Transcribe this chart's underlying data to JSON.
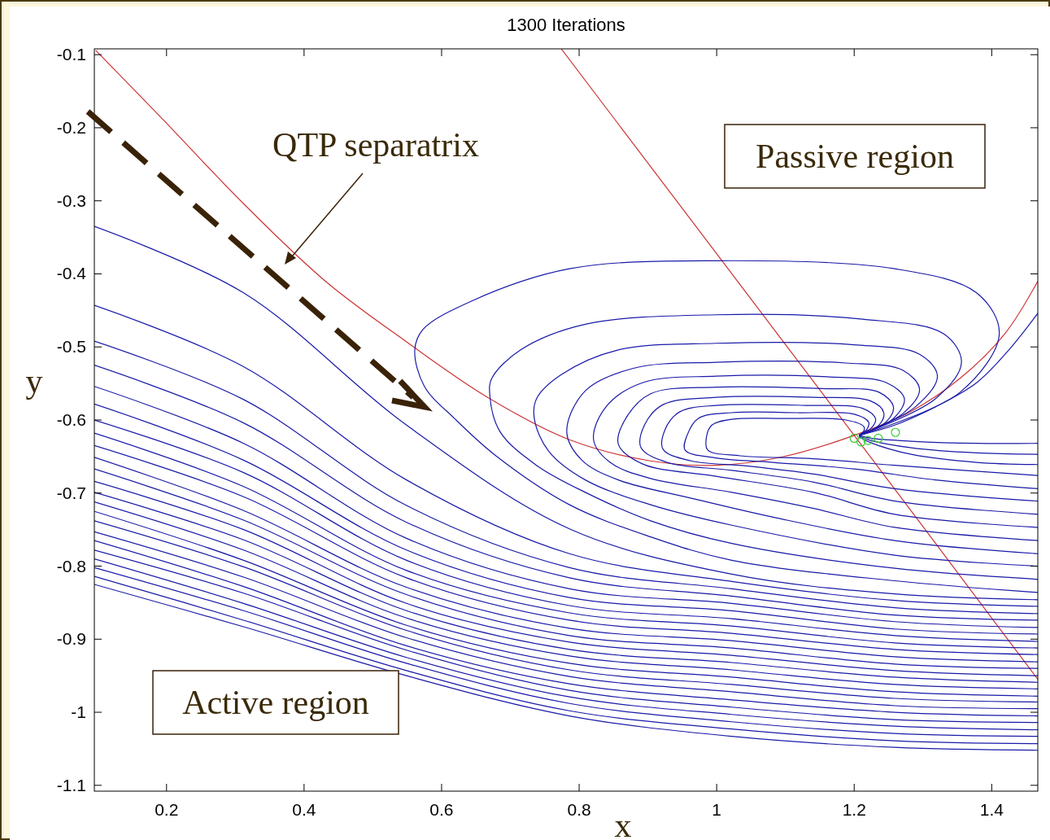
{
  "chart_data": {
    "type": "line",
    "title": "1300 Iterations",
    "xlabel": "x",
    "ylabel": "y",
    "xlim": [
      0.095,
      1.467
    ],
    "ylim": [
      -1.108,
      -0.092
    ],
    "xticks": [
      0.2,
      0.4,
      0.6,
      0.8,
      1,
      1.2,
      1.4
    ],
    "yticks": [
      -0.1,
      -0.2,
      -0.3,
      -0.4,
      -0.5,
      -0.6,
      -0.7,
      -0.8,
      -0.9,
      -1,
      -1.1
    ],
    "grid": false,
    "annotations": [
      "QTP separatrix",
      "Passive region",
      "Active region"
    ],
    "series": [
      {
        "color": "#cc3333",
        "x": [
          0.097,
          0.194,
          0.312,
          0.431,
          0.549,
          0.667,
          0.786,
          0.904,
          0.999,
          1.093,
          1.2,
          1.283,
          1.354,
          1.419,
          1.467
        ],
        "values": [
          -0.094,
          -0.188,
          -0.304,
          -0.41,
          -0.493,
          -0.569,
          -0.627,
          -0.656,
          -0.662,
          -0.651,
          -0.621,
          -0.588,
          -0.543,
          -0.482,
          -0.41
        ]
      },
      {
        "color": "#cc3333",
        "x": [
          0.774,
          1.2,
          1.467
        ],
        "values": [
          -0.092,
          -0.621,
          -0.955
        ]
      },
      {
        "color": "#1a1aa8",
        "x": [
          0.095,
          0.312,
          0.549,
          0.786,
          1.022,
          1.259,
          1.467
        ],
        "values": [
          -0.335,
          -0.426,
          -0.607,
          -0.749,
          -0.811,
          -0.838,
          -0.846
        ]
      },
      {
        "color": "#1a1aa8",
        "x": [
          0.095,
          0.312,
          0.549,
          0.786,
          1.022,
          1.259,
          1.467
        ],
        "values": [
          -0.443,
          -0.527,
          -0.682,
          -0.783,
          -0.821,
          -0.847,
          -0.855
        ]
      },
      {
        "color": "#1a1aa8",
        "x": [
          0.095,
          0.312,
          0.549,
          0.786,
          1.022,
          1.259,
          1.467
        ],
        "values": [
          -0.492,
          -0.572,
          -0.717,
          -0.802,
          -0.831,
          -0.857,
          -0.865
        ]
      },
      {
        "color": "#1a1aa8",
        "x": [
          0.095,
          0.312,
          0.549,
          0.786,
          1.022,
          1.259,
          1.467
        ],
        "values": [
          -0.525,
          -0.604,
          -0.74,
          -0.816,
          -0.841,
          -0.867,
          -0.874
        ]
      },
      {
        "color": "#1a1aa8",
        "x": [
          0.095,
          0.312,
          0.549,
          0.786,
          1.022,
          1.259,
          1.467
        ],
        "values": [
          -0.554,
          -0.632,
          -0.762,
          -0.831,
          -0.851,
          -0.876,
          -0.884
        ]
      },
      {
        "color": "#1a1aa8",
        "x": [
          0.095,
          0.312,
          0.549,
          0.786,
          1.022,
          1.259,
          1.467
        ],
        "values": [
          -0.578,
          -0.655,
          -0.778,
          -0.843,
          -0.861,
          -0.886,
          -0.893
        ]
      },
      {
        "color": "#1a1aa8",
        "x": [
          0.095,
          0.312,
          0.549,
          0.786,
          1.022,
          1.259,
          1.467
        ],
        "values": [
          -0.6,
          -0.672,
          -0.792,
          -0.854,
          -0.872,
          -0.895,
          -0.903
        ]
      },
      {
        "color": "#1a1aa8",
        "x": [
          0.095,
          0.312,
          0.549,
          0.786,
          1.022,
          1.259,
          1.467
        ],
        "values": [
          -0.618,
          -0.691,
          -0.806,
          -0.864,
          -0.882,
          -0.905,
          -0.912
        ]
      },
      {
        "color": "#1a1aa8",
        "x": [
          0.095,
          0.312,
          0.549,
          0.786,
          1.022,
          1.259,
          1.467
        ],
        "values": [
          -0.635,
          -0.705,
          -0.816,
          -0.874,
          -0.892,
          -0.914,
          -0.921
        ]
      },
      {
        "color": "#1a1aa8",
        "x": [
          0.095,
          0.312,
          0.549,
          0.786,
          1.022,
          1.259,
          1.467
        ],
        "values": [
          -0.651,
          -0.724,
          -0.829,
          -0.885,
          -0.902,
          -0.924,
          -0.931
        ]
      },
      {
        "color": "#1a1aa8",
        "x": [
          0.095,
          0.312,
          0.549,
          0.786,
          1.022,
          1.259,
          1.467
        ],
        "values": [
          -0.667,
          -0.737,
          -0.839,
          -0.895,
          -0.912,
          -0.934,
          -0.94
        ]
      },
      {
        "color": "#1a1aa8",
        "x": [
          0.095,
          0.312,
          0.549,
          0.786,
          1.022,
          1.259,
          1.467
        ],
        "values": [
          -0.684,
          -0.75,
          -0.851,
          -0.904,
          -0.922,
          -0.943,
          -0.95
        ]
      },
      {
        "color": "#1a1aa8",
        "x": [
          0.095,
          0.312,
          0.549,
          0.786,
          1.022,
          1.259,
          1.467
        ],
        "values": [
          -0.699,
          -0.764,
          -0.861,
          -0.914,
          -0.932,
          -0.952,
          -0.959
        ]
      },
      {
        "color": "#1a1aa8",
        "x": [
          0.095,
          0.312,
          0.549,
          0.786,
          1.022,
          1.259,
          1.467
        ],
        "values": [
          -0.712,
          -0.778,
          -0.871,
          -0.923,
          -0.942,
          -0.962,
          -0.968
        ]
      },
      {
        "color": "#1a1aa8",
        "x": [
          0.095,
          0.312,
          0.549,
          0.786,
          1.022,
          1.259,
          1.467
        ],
        "values": [
          -0.725,
          -0.792,
          -0.881,
          -0.933,
          -0.952,
          -0.972,
          -0.978
        ]
      },
      {
        "color": "#1a1aa8",
        "x": [
          0.095,
          0.312,
          0.549,
          0.786,
          1.022,
          1.259,
          1.467
        ],
        "values": [
          -0.738,
          -0.801,
          -0.888,
          -0.942,
          -0.962,
          -0.981,
          -0.986
        ]
      },
      {
        "color": "#1a1aa8",
        "x": [
          0.095,
          0.312,
          0.549,
          0.786,
          1.022,
          1.259,
          1.467
        ],
        "values": [
          -0.753,
          -0.815,
          -0.898,
          -0.951,
          -0.972,
          -0.991,
          -0.995
        ]
      },
      {
        "color": "#1a1aa8",
        "x": [
          0.095,
          0.312,
          0.549,
          0.786,
          1.022,
          1.259,
          1.467
        ],
        "values": [
          -0.765,
          -0.828,
          -0.909,
          -0.961,
          -0.983,
          -1.0,
          -1.005
        ]
      },
      {
        "color": "#1a1aa8",
        "x": [
          0.095,
          0.312,
          0.549,
          0.786,
          1.022,
          1.259,
          1.467
        ],
        "values": [
          -0.778,
          -0.837,
          -0.915,
          -0.97,
          -0.993,
          -1.01,
          -1.014
        ]
      },
      {
        "color": "#1a1aa8",
        "x": [
          0.095,
          0.312,
          0.549,
          0.786,
          1.022,
          1.259,
          1.467
        ],
        "values": [
          -0.79,
          -0.851,
          -0.925,
          -0.979,
          -1.003,
          -1.019,
          -1.024
        ]
      },
      {
        "color": "#1a1aa8",
        "x": [
          0.095,
          0.312,
          0.549,
          0.786,
          1.022,
          1.259,
          1.467
        ],
        "values": [
          -0.802,
          -0.861,
          -0.933,
          -0.988,
          -1.013,
          -1.029,
          -1.033
        ]
      },
      {
        "color": "#1a1aa8",
        "x": [
          0.095,
          0.312,
          0.549,
          0.786,
          1.022,
          1.259,
          1.467
        ],
        "values": [
          -0.814,
          -0.874,
          -0.943,
          -0.998,
          -1.023,
          -1.039,
          -1.043
        ]
      },
      {
        "color": "#1a1aa8",
        "x": [
          0.095,
          0.312,
          0.549,
          0.786,
          1.022,
          1.259,
          1.467
        ],
        "values": [
          -0.825,
          -0.883,
          -0.95,
          -1.005,
          -1.033,
          -1.048,
          -1.052
        ]
      },
      {
        "color": "#1a1aa8",
        "x": [
          1.207,
          1.354,
          1.411,
          1.378,
          1.259,
          0.999,
          0.786,
          0.644,
          0.573,
          0.561,
          0.575,
          0.62,
          0.679,
          0.786,
          0.904,
          1.022,
          1.259,
          1.467
        ],
        "values": [
          -0.621,
          -0.562,
          -0.482,
          -0.426,
          -0.393,
          -0.382,
          -0.393,
          -0.437,
          -0.476,
          -0.504,
          -0.554,
          -0.599,
          -0.649,
          -0.716,
          -0.76,
          -0.792,
          -0.82,
          -0.836
        ]
      },
      {
        "color": "#1a1aa8",
        "x": [
          1.207,
          1.318,
          1.356,
          1.33,
          1.212,
          0.999,
          0.809,
          0.715,
          0.673,
          0.67,
          0.685,
          0.738,
          0.809,
          0.904,
          1.022,
          1.259,
          1.467
        ],
        "values": [
          -0.621,
          -0.571,
          -0.521,
          -0.482,
          -0.462,
          -0.456,
          -0.469,
          -0.504,
          -0.543,
          -0.565,
          -0.616,
          -0.662,
          -0.699,
          -0.738,
          -0.769,
          -0.803,
          -0.818
        ]
      },
      {
        "color": "#1a1aa8",
        "x": [
          1.207,
          1.289,
          1.321,
          1.295,
          1.2,
          0.999,
          0.857,
          0.774,
          0.738,
          0.735,
          0.756,
          0.809,
          0.904,
          1.022,
          1.259,
          1.467
        ],
        "values": [
          -0.621,
          -0.582,
          -0.54,
          -0.51,
          -0.497,
          -0.495,
          -0.504,
          -0.538,
          -0.571,
          -0.599,
          -0.643,
          -0.682,
          -0.716,
          -0.744,
          -0.785,
          -0.8
        ]
      },
      {
        "color": "#1a1aa8",
        "x": [
          1.207,
          1.271,
          1.295,
          1.271,
          1.188,
          0.999,
          0.88,
          0.809,
          0.782,
          0.804,
          0.857,
          0.963,
          1.082,
          1.259,
          1.467
        ],
        "values": [
          -0.621,
          -0.591,
          -0.558,
          -0.532,
          -0.522,
          -0.521,
          -0.529,
          -0.56,
          -0.616,
          -0.655,
          -0.682,
          -0.707,
          -0.733,
          -0.765,
          -0.783
        ]
      },
      {
        "color": "#1a1aa8",
        "x": [
          1.207,
          1.257,
          1.273,
          1.247,
          1.165,
          0.999,
          0.892,
          0.839,
          0.821,
          0.845,
          0.904,
          1.022,
          1.141,
          1.259,
          1.467
        ],
        "values": [
          -0.621,
          -0.598,
          -0.571,
          -0.549,
          -0.541,
          -0.54,
          -0.549,
          -0.582,
          -0.627,
          -0.658,
          -0.68,
          -0.699,
          -0.721,
          -0.747,
          -0.765
        ]
      },
      {
        "color": "#1a1aa8",
        "x": [
          1.207,
          1.247,
          1.257,
          1.236,
          1.153,
          0.999,
          0.904,
          0.869,
          0.857,
          0.892,
          0.999,
          1.141,
          1.259,
          1.467
        ],
        "values": [
          -0.621,
          -0.602,
          -0.582,
          -0.562,
          -0.557,
          -0.555,
          -0.564,
          -0.596,
          -0.633,
          -0.66,
          -0.677,
          -0.699,
          -0.729,
          -0.747
        ]
      },
      {
        "color": "#1a1aa8",
        "x": [
          1.207,
          1.236,
          1.243,
          1.224,
          1.141,
          0.999,
          0.922,
          0.895,
          0.89,
          0.928,
          1.022,
          1.141,
          1.259,
          1.467
        ],
        "values": [
          -0.621,
          -0.607,
          -0.59,
          -0.574,
          -0.569,
          -0.569,
          -0.579,
          -0.607,
          -0.638,
          -0.658,
          -0.669,
          -0.685,
          -0.711,
          -0.729
        ]
      },
      {
        "color": "#1a1aa8",
        "x": [
          1.207,
          1.226,
          1.231,
          1.212,
          1.129,
          0.999,
          0.946,
          0.925,
          0.922,
          0.963,
          1.046,
          1.141,
          1.259,
          1.467
        ],
        "values": [
          -0.621,
          -0.61,
          -0.598,
          -0.584,
          -0.58,
          -0.58,
          -0.589,
          -0.613,
          -0.64,
          -0.656,
          -0.663,
          -0.674,
          -0.694,
          -0.711
        ]
      },
      {
        "color": "#1a1aa8",
        "x": [
          1.207,
          1.219,
          1.221,
          1.2,
          1.117,
          1.022,
          0.973,
          0.957,
          0.954,
          0.999,
          1.082,
          1.2,
          1.318,
          1.467
        ],
        "values": [
          -0.621,
          -0.612,
          -0.603,
          -0.592,
          -0.59,
          -0.59,
          -0.598,
          -0.621,
          -0.641,
          -0.652,
          -0.658,
          -0.667,
          -0.682,
          -0.694
        ]
      },
      {
        "color": "#1a1aa8",
        "x": [
          1.207,
          1.214,
          1.214,
          1.188,
          1.094,
          1.022,
          0.993,
          0.985,
          0.987,
          1.034,
          1.141,
          1.259,
          1.467
        ],
        "values": [
          -0.621,
          -0.615,
          -0.609,
          -0.6,
          -0.598,
          -0.599,
          -0.607,
          -0.624,
          -0.641,
          -0.649,
          -0.653,
          -0.662,
          -0.676
        ]
      },
      {
        "color": "#1a1aa8",
        "x": [
          1.467,
          1.378,
          1.283,
          1.224,
          1.207
        ],
        "values": [
          -0.632,
          -0.632,
          -0.629,
          -0.625,
          -0.621
        ]
      },
      {
        "color": "#1a1aa8",
        "x": [
          1.467,
          1.378,
          1.283,
          1.224,
          1.207
        ],
        "values": [
          -0.647,
          -0.645,
          -0.638,
          -0.628,
          -0.622
        ]
      },
      {
        "color": "#1a1aa8",
        "x": [
          1.467,
          1.378,
          1.283,
          1.224,
          1.207
        ],
        "values": [
          -0.661,
          -0.658,
          -0.647,
          -0.631,
          -0.623
        ]
      },
      {
        "color": "#1a1aa8",
        "x": [
          1.207,
          1.259,
          1.318,
          1.378,
          1.425,
          1.467
        ],
        "values": [
          -0.621,
          -0.607,
          -0.582,
          -0.549,
          -0.504,
          -0.454
        ]
      },
      {
        "type": "scatter",
        "marker": "circle",
        "color": "#33cc33",
        "x": [
          1.2,
          1.21,
          1.22,
          1.235,
          1.26
        ],
        "values": [
          -0.625,
          -0.63,
          -0.628,
          -0.625,
          -0.617
        ]
      }
    ]
  }
}
